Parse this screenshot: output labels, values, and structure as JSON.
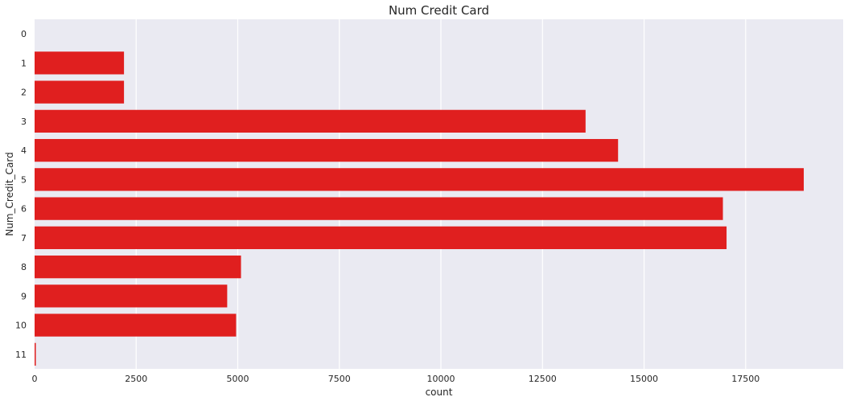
{
  "chart_data": {
    "type": "bar",
    "orientation": "horizontal",
    "title": "Num Credit Card",
    "xlabel": "count",
    "ylabel": "Num_Credit_Card",
    "categories": [
      "0",
      "1",
      "2",
      "3",
      "4",
      "5",
      "6",
      "7",
      "8",
      "9",
      "10",
      "11"
    ],
    "values": [
      0,
      2200,
      2200,
      13560,
      14360,
      18930,
      16940,
      17030,
      5080,
      4740,
      4960,
      30
    ],
    "xlim": [
      0,
      19900
    ],
    "xticks": [
      0,
      2500,
      5000,
      7500,
      10000,
      12500,
      15000,
      17500
    ],
    "grid": true,
    "bar_color": "#e01f1f",
    "background_color": "#eaeaf2",
    "grid_color": "#ffffff"
  }
}
